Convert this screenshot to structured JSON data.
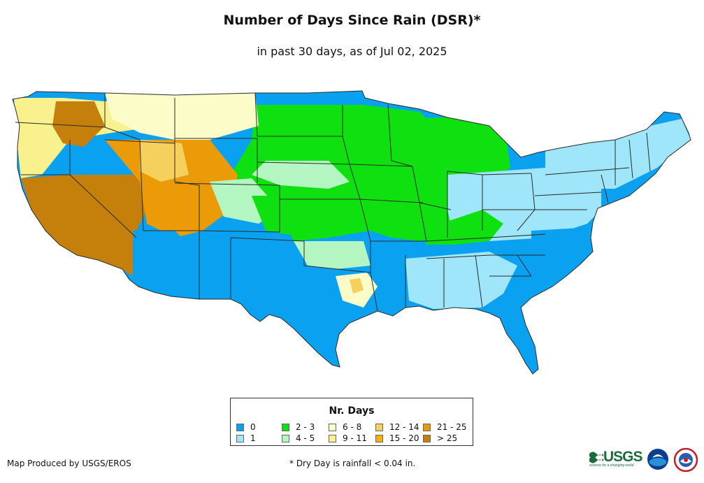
{
  "title": "Number of Days Since Rain (DSR)*",
  "subtitle": "in past 30 days, as of Jul 02, 2025",
  "legend": {
    "title": "Nr. Days",
    "items": [
      {
        "label": "0",
        "color": "#0aa2f0"
      },
      {
        "label": "1",
        "color": "#9fe6fb"
      },
      {
        "label": "2 - 3",
        "color": "#0ee10f"
      },
      {
        "label": "4 - 5",
        "color": "#b4f6c2"
      },
      {
        "label": "6 - 8",
        "color": "#fcfcc8"
      },
      {
        "label": "9 - 11",
        "color": "#f9f08e"
      },
      {
        "label": "12 - 14",
        "color": "#f5d05d"
      },
      {
        "label": "15 - 20",
        "color": "#f2b10a"
      },
      {
        "label": "21 - 25",
        "color": "#eb9a08"
      },
      {
        "label": "> 25",
        "color": "#c5800c"
      }
    ]
  },
  "footer": {
    "producer": "Map Produced by USGS/EROS",
    "note": "* Dry Day is rainfall < 0.04 in."
  },
  "logos": {
    "usgs": "USGS",
    "usgs_tagline": "science for a changing world",
    "noaa": "NOAA",
    "nws": "NWS"
  },
  "colors": {
    "border": "#2a2a2a",
    "ocean": "#ffffff"
  }
}
